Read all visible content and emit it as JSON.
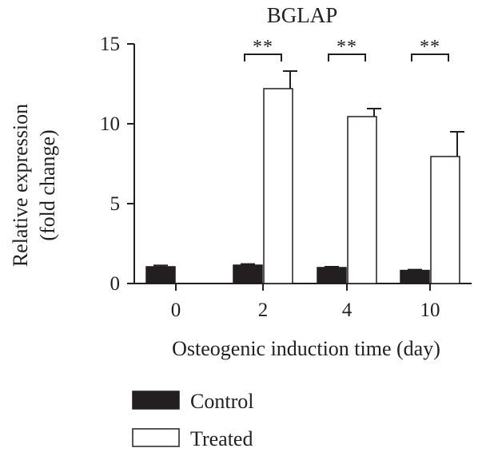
{
  "chart_data": {
    "type": "bar",
    "title": "BGLAP",
    "xlabel": "Osteogenic induction time (day)",
    "ylabel_lines": [
      "Relative expression",
      "(fold change)"
    ],
    "categories": [
      "0",
      "2",
      "4",
      "10"
    ],
    "ylim": [
      0,
      15
    ],
    "yticks": [
      "0",
      "5",
      "10",
      "15"
    ],
    "series": [
      {
        "name": "Control",
        "values": [
          1.05,
          1.15,
          1.0,
          0.82
        ],
        "errors": [
          0.08,
          0.07,
          0.05,
          0.05
        ],
        "color": "#231f20"
      },
      {
        "name": "Treated",
        "values": [
          0,
          12.2,
          10.45,
          7.95
        ],
        "errors": [
          0,
          1.1,
          0.5,
          1.55
        ],
        "color": "#ffffff"
      }
    ],
    "significance": [
      {
        "category": "2",
        "label": "**"
      },
      {
        "category": "4",
        "label": "**"
      },
      {
        "category": "10",
        "label": "**"
      }
    ],
    "grid": false,
    "legend_position": "bottom-left"
  }
}
